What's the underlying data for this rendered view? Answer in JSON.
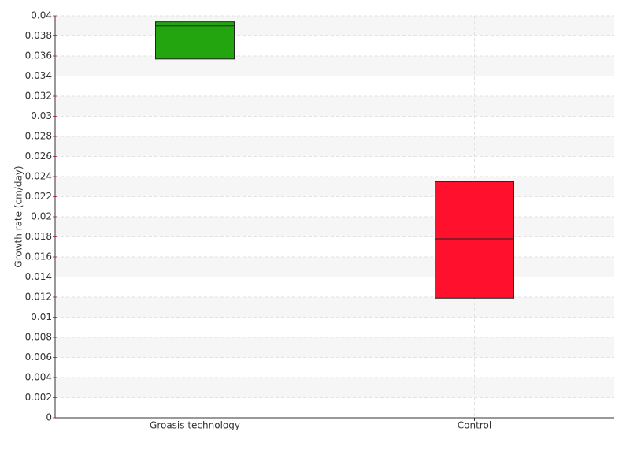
{
  "chart_data": {
    "type": "box",
    "y_label": "Growth rate (cm/day)",
    "categories": [
      "Groasis technology",
      "Control"
    ],
    "q1": [
      0.0357,
      0.0119
    ],
    "median": [
      0.039,
      0.0178
    ],
    "q3": [
      0.0394,
      0.0235
    ],
    "colors": [
      "#22a50f",
      "#ff102c"
    ],
    "ylim": [
      0,
      0.04
    ],
    "yticks": [
      0,
      0.002,
      0.004,
      0.006,
      0.008,
      0.01,
      0.012,
      0.014,
      0.016,
      0.018,
      0.02,
      0.022,
      0.024,
      0.026,
      0.028,
      0.03,
      0.032,
      0.034,
      0.036,
      0.038,
      0.04
    ],
    "grid": true
  }
}
